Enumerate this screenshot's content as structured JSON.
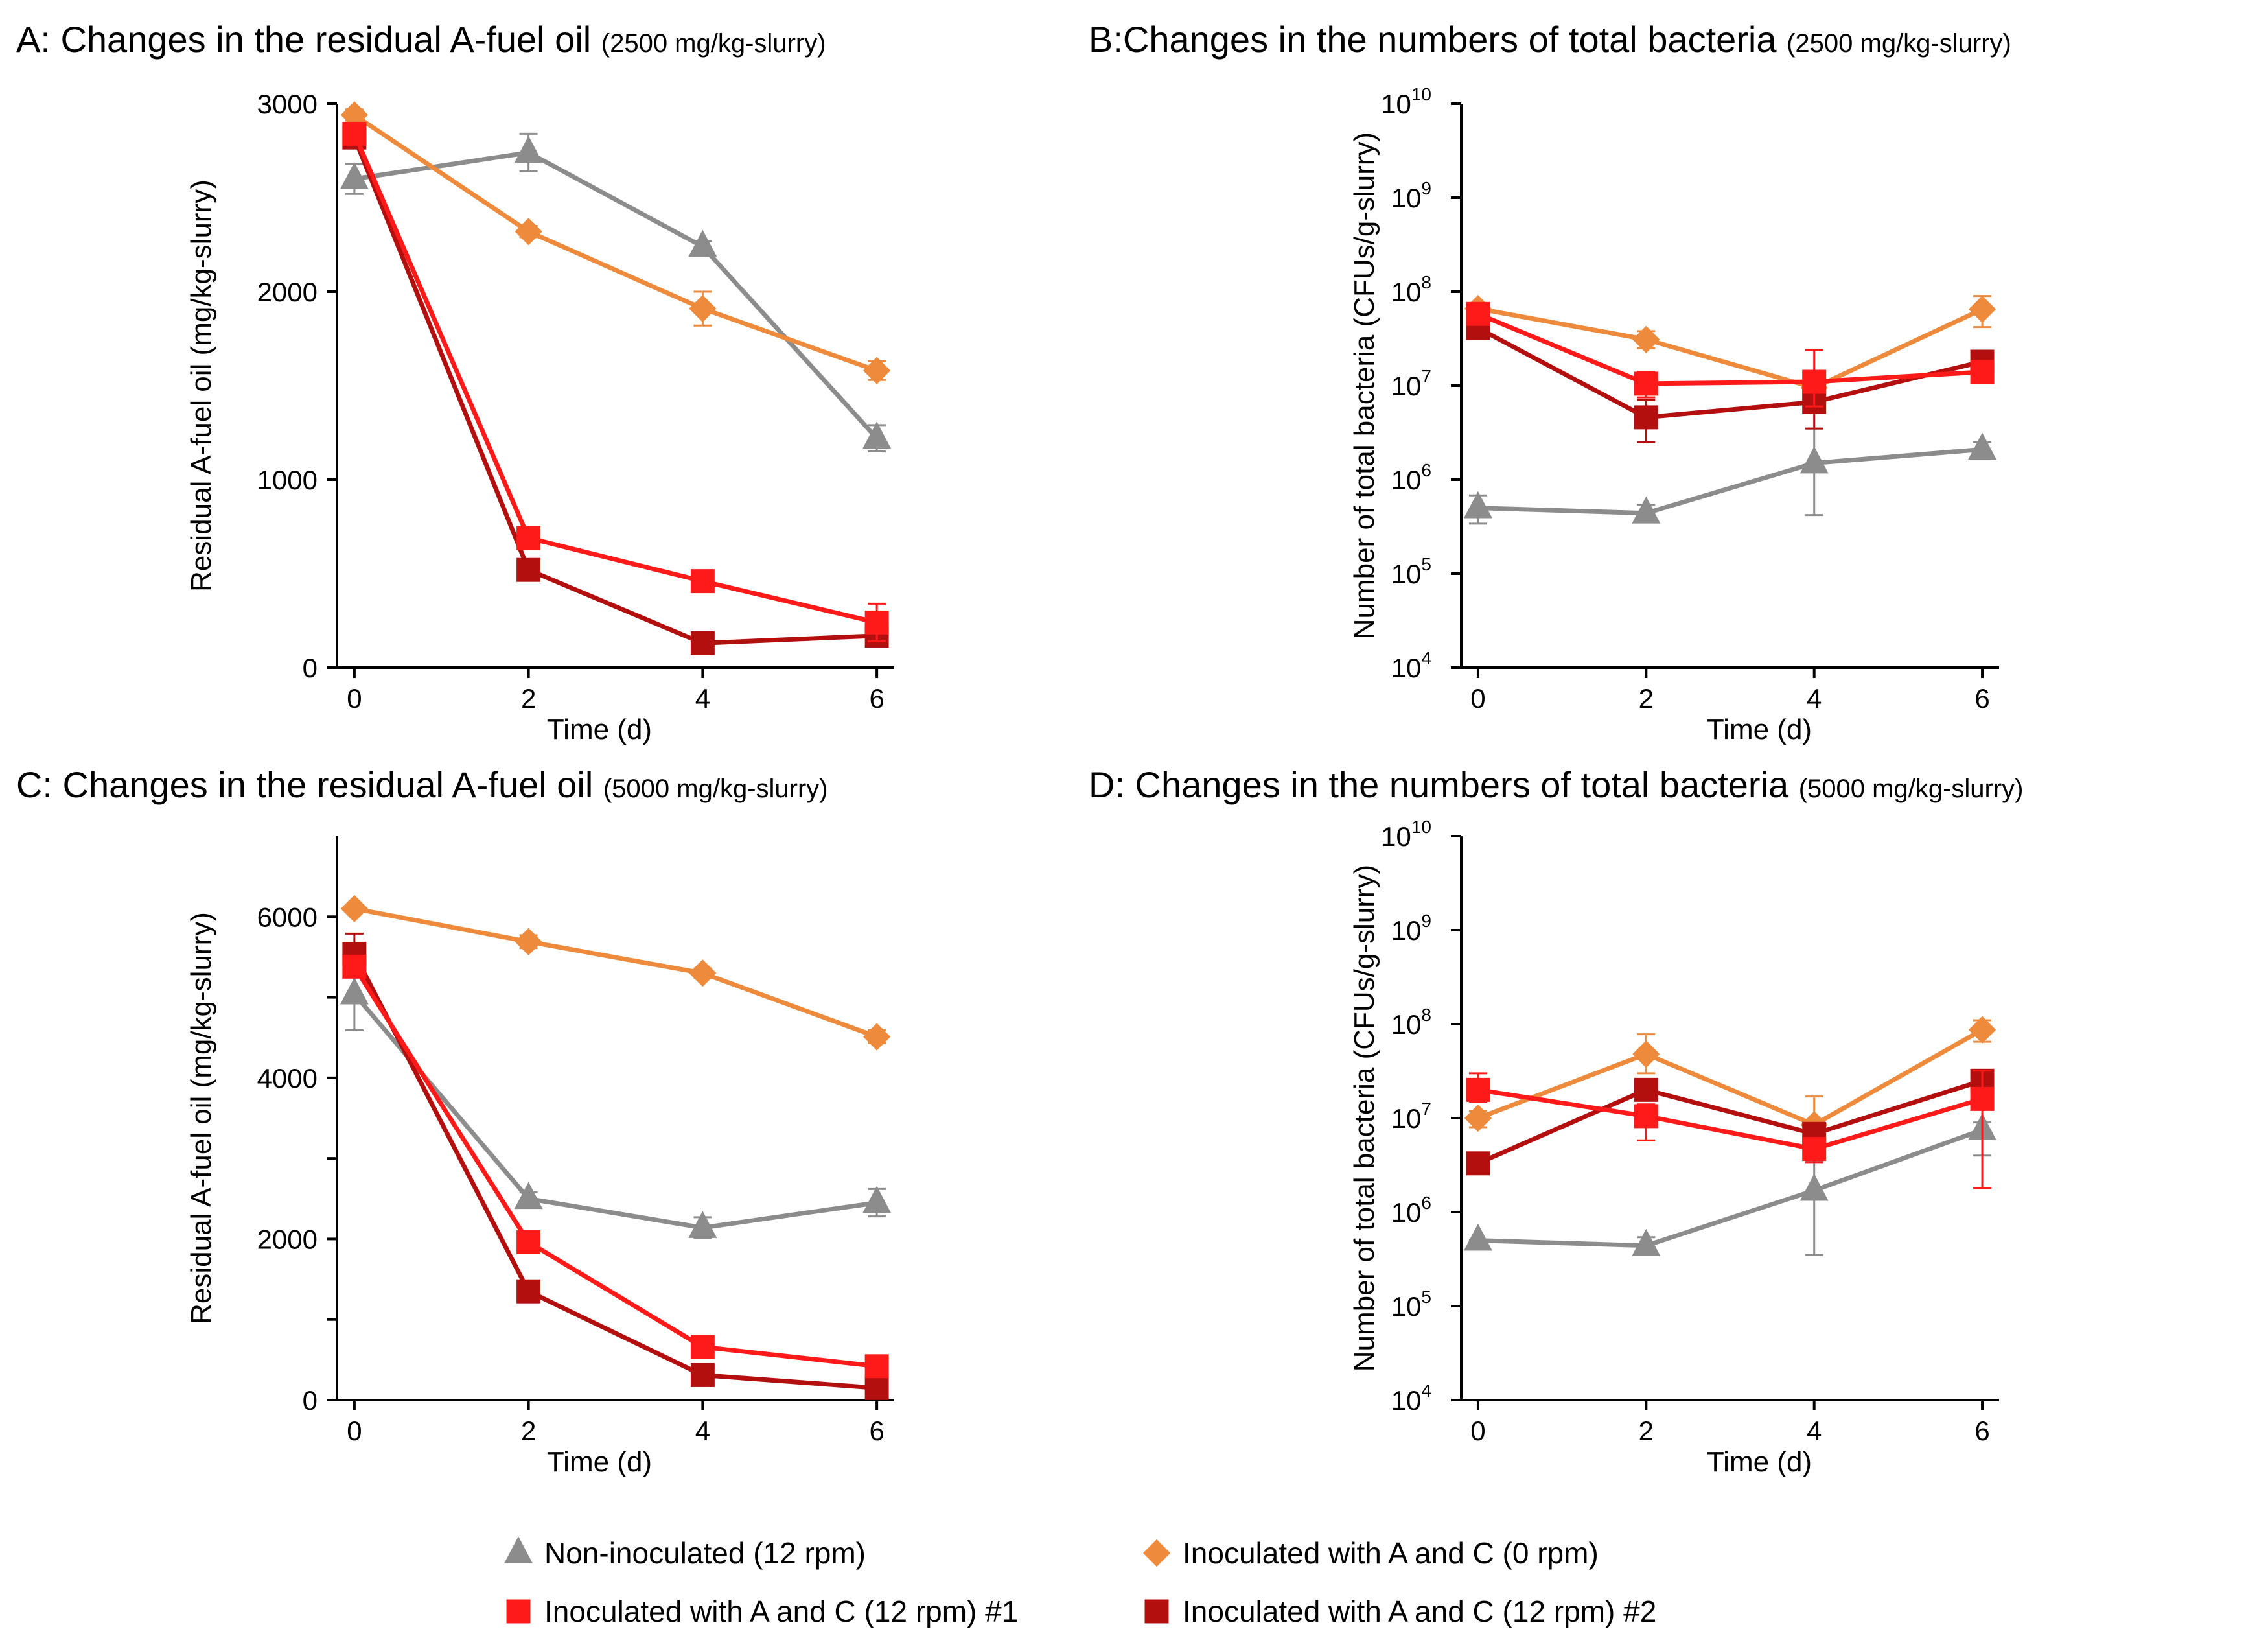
{
  "chart_data": [
    {
      "type": "line",
      "panel": "A",
      "title": "A: Changes in the residual A-fuel oil",
      "subtitle": "(2500 mg/kg-slurry)",
      "xlabel": "Time (d)",
      "ylabel": "Residual A-fuel oil (mg/kg-slurry)",
      "yscale": "linear",
      "xlim": [
        0,
        6
      ],
      "ylim": [
        0,
        3000
      ],
      "xticks": [
        0,
        2,
        4,
        6
      ],
      "yticks": [
        0,
        1000,
        2000,
        3000
      ],
      "x": [
        0,
        2,
        4,
        6
      ],
      "series": [
        {
          "name": "Non-inoculated (12 rpm)",
          "values": [
            2600,
            2740,
            2240,
            1220
          ],
          "errors": [
            80,
            100,
            30,
            70
          ]
        },
        {
          "name": "Inoculated with A and C (0 rpm)",
          "values": [
            2940,
            2320,
            1910,
            1580
          ],
          "errors": [
            30,
            30,
            90,
            50
          ]
        },
        {
          "name": "Inoculated with A and C (12 rpm) #1",
          "values": [
            2840,
            690,
            460,
            240
          ],
          "errors": [
            40,
            20,
            20,
            100
          ]
        },
        {
          "name": "Inoculated with A and C (12 rpm) #2",
          "values": [
            2820,
            520,
            130,
            170
          ],
          "errors": [
            40,
            20,
            20,
            20
          ]
        }
      ]
    },
    {
      "type": "line",
      "panel": "B",
      "title": "B:Changes in the numbers of total bacteria",
      "subtitle": "(2500 mg/kg-slurry)",
      "xlabel": "Time (d)",
      "ylabel": "Number of total bacteria (CFUs/g-slurry)",
      "yscale": "log",
      "xlim": [
        0,
        6
      ],
      "ylim": [
        10000,
        10000000000
      ],
      "xticks": [
        0,
        2,
        4,
        6
      ],
      "ytick_exponents": [
        4,
        5,
        6,
        7,
        8,
        9,
        10
      ],
      "x": [
        0,
        2,
        4,
        6
      ],
      "series": [
        {
          "name": "Non-inoculated (12 rpm)",
          "values": [
            500000,
            440000,
            1500000,
            2100000
          ],
          "err_low": [
            340000,
            360000,
            420000,
            1800000
          ],
          "err_high": [
            680000,
            540000,
            3500000,
            2500000
          ]
        },
        {
          "name": "Inoculated with A and C (0 rpm)",
          "values": [
            66000000,
            31000000,
            9500000,
            65000000
          ],
          "err_low": [
            60000000,
            25000000,
            7000000,
            42000000
          ],
          "err_high": [
            72000000,
            38000000,
            14000000,
            90000000
          ]
        },
        {
          "name": "Inoculated with A and C (12 rpm) #1",
          "values": [
            58000000,
            10500000,
            11000000,
            14000000
          ],
          "err_low": [
            50000000,
            7500000,
            6000000,
            12000000
          ],
          "err_high": [
            66000000,
            14000000,
            24000000,
            16000000
          ]
        },
        {
          "name": "Inoculated with A and C (12 rpm) #2",
          "values": [
            41000000,
            4600000,
            6700000,
            18000000
          ],
          "err_low": [
            36000000,
            2500000,
            3500000,
            16000000
          ],
          "err_high": [
            46000000,
            7000000,
            10000000,
            20000000
          ]
        }
      ]
    },
    {
      "type": "line",
      "panel": "C",
      "title": "C: Changes in the residual A-fuel oil",
      "subtitle": "(5000 mg/kg-slurry)",
      "xlabel": "Time (d)",
      "ylabel": "Residual A-fuel oil (mg/kg-slurry)",
      "yscale": "linear",
      "xlim": [
        0,
        6
      ],
      "ylim": [
        0,
        7000
      ],
      "xticks": [
        0,
        2,
        4,
        6
      ],
      "yticks": [
        0,
        2000,
        4000,
        6000
      ],
      "x": [
        0,
        2,
        4,
        6
      ],
      "series": [
        {
          "name": "Non-inoculated (12 rpm)",
          "values": [
            5040,
            2500,
            2140,
            2450
          ],
          "errors": [
            450,
            80,
            130,
            170
          ]
        },
        {
          "name": "Inoculated with A and C (0 rpm)",
          "values": [
            6100,
            5690,
            5300,
            4510
          ],
          "errors": [
            40,
            80,
            60,
            80
          ]
        },
        {
          "name": "Inoculated with A and C (12 rpm) #1",
          "values": [
            5380,
            1960,
            660,
            420
          ],
          "errors": [
            50,
            60,
            40,
            30
          ]
        },
        {
          "name": "Inoculated with A and C (12 rpm) #2",
          "values": [
            5540,
            1350,
            310,
            150
          ],
          "errors": [
            250,
            40,
            30,
            20
          ]
        }
      ]
    },
    {
      "type": "line",
      "panel": "D",
      "title": "D: Changes in the numbers of total bacteria",
      "subtitle": "(5000 mg/kg-slurry)",
      "xlabel": "Time (d)",
      "ylabel": "Number of total bacteria (CFUs/g-slurry)",
      "yscale": "log",
      "xlim": [
        0,
        6
      ],
      "ylim": [
        10000,
        10000000000
      ],
      "xticks": [
        0,
        2,
        4,
        6
      ],
      "ytick_exponents": [
        4,
        5,
        6,
        7,
        8,
        9,
        10
      ],
      "x": [
        0,
        2,
        4,
        6
      ],
      "series": [
        {
          "name": "Non-inoculated (12 rpm)",
          "values": [
            500000,
            440000,
            1700000,
            7500000
          ],
          "err_low": [
            500000,
            360000,
            350000,
            4000000
          ],
          "err_high": [
            500000,
            540000,
            3500000,
            9000000
          ]
        },
        {
          "name": "Inoculated with A and C (0 rpm)",
          "values": [
            10000000,
            48000000,
            8500000,
            87000000
          ],
          "err_low": [
            8000000,
            30000000,
            4500000,
            65000000
          ],
          "err_high": [
            12000000,
            78000000,
            17000000,
            110000000
          ]
        },
        {
          "name": "Inoculated with A and C (12 rpm) #1",
          "values": [
            20000000,
            10500000,
            4700000,
            16000000
          ],
          "err_low": [
            15000000,
            5800000,
            3400000,
            1800000
          ],
          "err_high": [
            30000000,
            14000000,
            6000000,
            32000000
          ]
        },
        {
          "name": "Inoculated with A and C (12 rpm) #2",
          "values": [
            3300000,
            20000000,
            6800000,
            25000000
          ],
          "err_low": [
            2800000,
            16000000,
            5500000,
            20000000
          ],
          "err_high": [
            3800000,
            24000000,
            8000000,
            30000000
          ]
        }
      ]
    }
  ],
  "legend": {
    "position": "bottom",
    "entries": [
      {
        "label": "Non-inoculated (12 rpm)",
        "color": "#8c8c8c",
        "marker": "triangle"
      },
      {
        "label": "Inoculated with A and C (0 rpm)",
        "color": "#ed8a3b",
        "marker": "diamond"
      },
      {
        "label": "Inoculated with A and C (12 rpm) #1",
        "color": "#ff1a1a",
        "marker": "square"
      },
      {
        "label": "Inoculated with A and C (12 rpm) #2",
        "color": "#b30f0f",
        "marker": "square"
      }
    ]
  }
}
